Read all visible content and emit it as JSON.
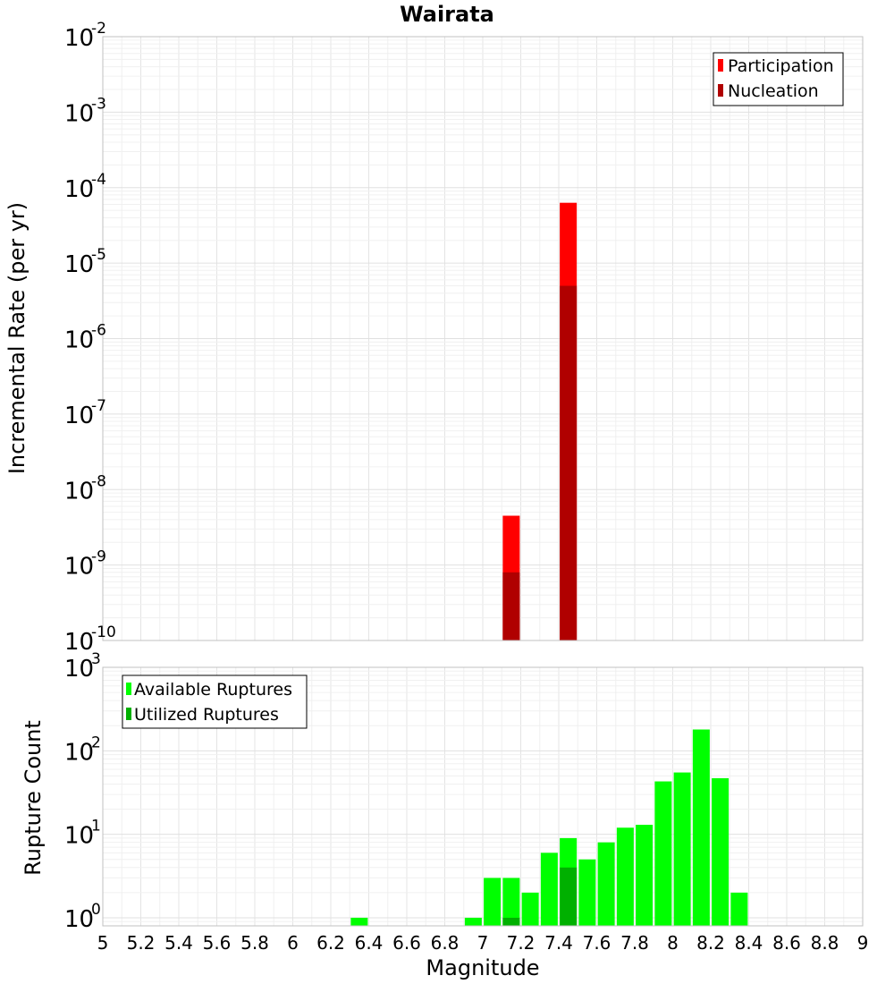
{
  "chart_data": [
    {
      "type": "bar",
      "title": "Wairata",
      "xlabel": "",
      "ylabel": "Incremental Rate (per yr)",
      "y_scale": "log",
      "ylim": [
        1e-10,
        0.01
      ],
      "xlim": [
        5,
        9
      ],
      "y_tick_exponents": [
        -10,
        -9,
        -8,
        -7,
        -6,
        -5,
        -4,
        -3,
        -2
      ],
      "grid": true,
      "legend_position": "top-right",
      "series": [
        {
          "name": "Participation",
          "color": "#ff0000",
          "x": [
            7.15,
            7.45
          ],
          "values": [
            4.5e-09,
            6.3e-05
          ]
        },
        {
          "name": "Nucleation",
          "color": "#b00000",
          "x": [
            7.15,
            7.45
          ],
          "values": [
            8e-10,
            5e-06
          ]
        }
      ]
    },
    {
      "type": "bar",
      "title": "",
      "xlabel": "Magnitude",
      "ylabel": "Rupture Count",
      "y_scale": "log",
      "ylim": [
        0.8,
        1000
      ],
      "xlim": [
        5,
        9
      ],
      "x_ticks": [
        "5",
        "5.2",
        "5.4",
        "5.6",
        "5.8",
        "6",
        "6.2",
        "6.4",
        "6.6",
        "6.8",
        "7",
        "7.2",
        "7.4",
        "7.6",
        "7.8",
        "8",
        "8.2",
        "8.4",
        "8.6",
        "8.8",
        "9"
      ],
      "y_tick_exponents": [
        0,
        1,
        2,
        3
      ],
      "grid": true,
      "legend_position": "top-left",
      "series": [
        {
          "name": "Available Ruptures",
          "color": "#00ff00",
          "x": [
            6.35,
            6.95,
            7.05,
            7.15,
            7.25,
            7.35,
            7.45,
            7.55,
            7.65,
            7.75,
            7.85,
            7.95,
            8.05,
            8.15,
            8.25,
            8.35
          ],
          "values": [
            1,
            1,
            3,
            3,
            2,
            6,
            9,
            5,
            8,
            12,
            13,
            43,
            55,
            180,
            47,
            2
          ]
        },
        {
          "name": "Utilized Ruptures",
          "color": "#00b000",
          "x": [
            7.15,
            7.45
          ],
          "values": [
            1,
            4
          ]
        }
      ]
    }
  ]
}
